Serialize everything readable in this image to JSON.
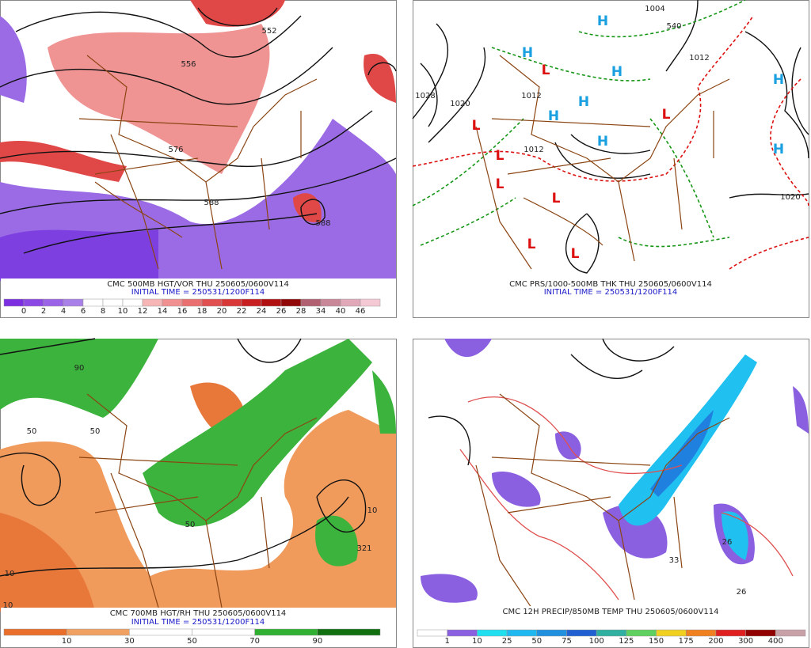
{
  "panels": [
    {
      "caption": "CMC 500MB HGT/VOR THU 250605/0600V114",
      "initial_time": "INITIAL TIME = 250531/1200F114",
      "colorbar": {
        "labels": [
          "0",
          "2",
          "4",
          "6",
          "8",
          "10",
          "12",
          "14",
          "16",
          "18",
          "20",
          "22",
          "24",
          "26",
          "28",
          "34",
          "40",
          "46"
        ],
        "colors": [
          "#7b2fe0",
          "#8c48e4",
          "#9a62e6",
          "#a97fe8",
          "#ffffff",
          "#ffffff",
          "#ffffff",
          "#f6b6b6",
          "#f09090",
          "#ea7070",
          "#e05050",
          "#d83838",
          "#c82020",
          "#b01010",
          "#900808",
          "#b06070",
          "#c88898",
          "#e0a8b8",
          "#f4c8d4"
        ]
      },
      "map_labels": [
        "552",
        "556",
        "576",
        "588",
        "588"
      ]
    },
    {
      "caption": "CMC PRS/1000-500MB THK THU 250605/0600V114",
      "initial_time": "INITIAL TIME = 250531/1200F114",
      "map_labels": [
        "1004",
        "540",
        "1012",
        "1028",
        "1020",
        "1012",
        "1012",
        "1020",
        "H",
        "H",
        "H",
        "H",
        "H",
        "H",
        "H",
        "H",
        "L",
        "L",
        "L",
        "L",
        "L",
        "L",
        "L",
        "L"
      ]
    },
    {
      "caption": "CMC 700MB HGT/RH THU 250605/0600V114",
      "initial_time": "INITIAL TIME = 250531/1200F114",
      "colorbar": {
        "labels": [
          "10",
          "30",
          "50",
          "70",
          "90"
        ],
        "colors": [
          "#e86e2a",
          "#f0a060",
          "#ffffff",
          "#ffffff",
          "#30b030",
          "#107010"
        ]
      },
      "map_labels": [
        "50",
        "90",
        "50",
        "10",
        "10",
        "321",
        "10",
        "50"
      ]
    },
    {
      "caption": "CMC 12H PRECIP/850MB TEMP THU 250605/0600V114",
      "colorbar": {
        "labels": [
          "1",
          "10",
          "25",
          "50",
          "75",
          "100",
          "125",
          "150",
          "175",
          "200",
          "300",
          "400"
        ],
        "colors": [
          "#ffffff",
          "#8a60e0",
          "#20e0f0",
          "#20b8f0",
          "#2090e0",
          "#2060d0",
          "#30b0a0",
          "#60d060",
          "#f0d020",
          "#f08020",
          "#e02020",
          "#900000",
          "#c8a0a8"
        ]
      },
      "map_labels": [
        "26",
        "33",
        "26"
      ]
    }
  ]
}
